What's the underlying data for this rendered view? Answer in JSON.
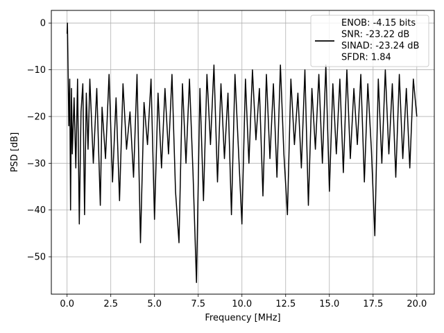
{
  "chart_data": {
    "type": "line",
    "title": "",
    "xlabel": "Frequency [MHz]",
    "ylabel": "PSD [dB]",
    "xlim": [
      -0.9,
      21.0
    ],
    "ylim": [
      -58,
      2.7
    ],
    "xticks": [
      0.0,
      2.5,
      5.0,
      7.5,
      10.0,
      12.5,
      15.0,
      17.5,
      20.0
    ],
    "xtick_labels": [
      "0.0",
      "2.5",
      "5.0",
      "7.5",
      "10.0",
      "12.5",
      "15.0",
      "17.5",
      "20.0"
    ],
    "yticks": [
      0,
      -10,
      -20,
      -30,
      -40,
      -50
    ],
    "ytick_labels": [
      "0",
      "−10",
      "−20",
      "−30",
      "−40",
      "−50"
    ],
    "grid": true,
    "legend": {
      "placement": "top-right",
      "entries": [
        "ENOB: -4.15 bits",
        "SNR: -23.22 dB",
        "SINAD: -23.24 dB",
        "SFDR: 1.84"
      ]
    },
    "series": [
      {
        "color": "#000000",
        "x": [
          0.0,
          0.02,
          0.05,
          0.1,
          0.15,
          0.2,
          0.25,
          0.3,
          0.4,
          0.5,
          0.6,
          0.7,
          0.8,
          0.9,
          1.0,
          1.1,
          1.2,
          1.3,
          1.5,
          1.7,
          1.9,
          2.0,
          2.2,
          2.4,
          2.6,
          2.8,
          3.0,
          3.2,
          3.4,
          3.6,
          3.8,
          4.0,
          4.2,
          4.4,
          4.6,
          4.8,
          5.0,
          5.2,
          5.4,
          5.6,
          5.8,
          6.0,
          6.2,
          6.4,
          6.6,
          6.8,
          7.0,
          7.2,
          7.4,
          7.6,
          7.8,
          8.0,
          8.2,
          8.4,
          8.6,
          8.8,
          9.0,
          9.2,
          9.4,
          9.6,
          9.8,
          10.0,
          10.2,
          10.4,
          10.6,
          10.8,
          11.0,
          11.2,
          11.4,
          11.6,
          11.8,
          12.0,
          12.2,
          12.4,
          12.6,
          12.8,
          13.0,
          13.2,
          13.4,
          13.6,
          13.8,
          14.0,
          14.2,
          14.4,
          14.6,
          14.8,
          15.0,
          15.2,
          15.4,
          15.6,
          15.8,
          16.0,
          16.2,
          16.4,
          16.6,
          16.8,
          17.0,
          17.2,
          17.4,
          17.6,
          17.8,
          18.0,
          18.2,
          18.4,
          18.6,
          18.8,
          19.0,
          19.2,
          19.4,
          19.6,
          19.8,
          20.0
        ],
        "y": [
          -2.3,
          0.0,
          -7.5,
          -22,
          -12,
          -40,
          -14,
          -28,
          -16,
          -31,
          -12,
          -43,
          -19,
          -13,
          -41,
          -15,
          -27,
          -12,
          -30,
          -14,
          -39,
          -18,
          -29,
          -11,
          -34,
          -16,
          -38,
          -13,
          -27,
          -19,
          -33,
          -11,
          -47,
          -17,
          -26,
          -12,
          -42,
          -15,
          -31,
          -14,
          -28,
          -11,
          -36,
          -47,
          -13,
          -30,
          -12,
          -32,
          -55.5,
          -14,
          -38,
          -11,
          -26,
          -9,
          -34,
          -13,
          -29,
          -15,
          -41,
          -11,
          -27,
          -43,
          -12,
          -30,
          -10,
          -25,
          -14,
          -37,
          -11,
          -29,
          -13,
          -33,
          -9,
          -28,
          -41,
          -12,
          -26,
          -15,
          -31,
          -10,
          -39,
          -14,
          -27,
          -11,
          -30,
          -9,
          -36,
          -13,
          -28,
          -12,
          -32,
          -10,
          -29,
          -14,
          -26,
          -11,
          -34,
          -13,
          -27,
          -45.5,
          -12,
          -30,
          -10,
          -28,
          -13,
          -33,
          -11,
          -29,
          -14,
          -31,
          -12,
          -20
        ]
      }
    ]
  }
}
